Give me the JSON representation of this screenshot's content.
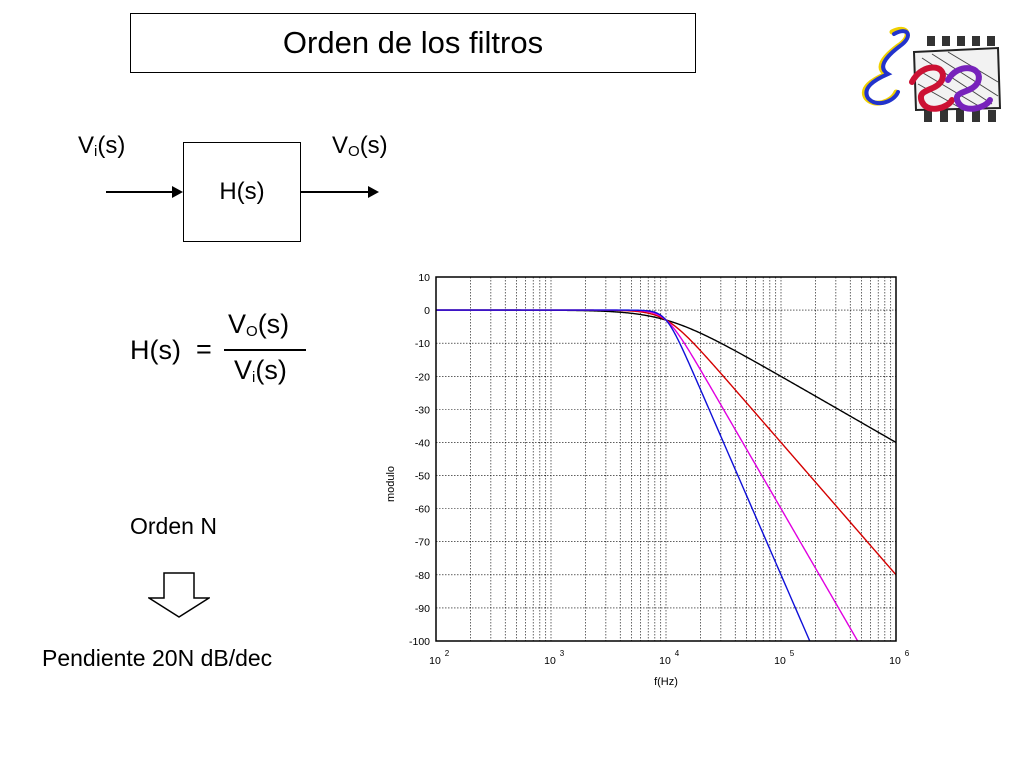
{
  "slide": {
    "title": "Orden de los filtros"
  },
  "block_diagram": {
    "input_main": "V",
    "input_sub": "i",
    "input_arg": "(s)",
    "output_main": "V",
    "output_sub": "O",
    "output_arg": "(s)",
    "block_label": "H(s)"
  },
  "formula": {
    "lhs": "H(s)",
    "equals": "=",
    "num_main": "V",
    "num_sub": "O",
    "num_arg": "(s)",
    "den_main": "V",
    "den_sub": "i",
    "den_arg": "(s)"
  },
  "order_label": "Orden N",
  "slope_label": "Pendiente 20N dB/dec",
  "chart_data": {
    "type": "line",
    "xlabel": "f(Hz)",
    "ylabel": "modulo",
    "xscale": "log",
    "xlim": [
      100,
      1000000
    ],
    "ylim": [
      -100,
      10
    ],
    "xticks": [
      100,
      1000,
      10000,
      100000,
      1000000
    ],
    "xtick_labels": [
      {
        "base": "10",
        "exp": "2"
      },
      {
        "base": "10",
        "exp": "3"
      },
      {
        "base": "10",
        "exp": "4"
      },
      {
        "base": "10",
        "exp": "5"
      },
      {
        "base": "10",
        "exp": "6"
      }
    ],
    "yticks": [
      10,
      0,
      -10,
      -20,
      -30,
      -40,
      -50,
      -60,
      -70,
      -80,
      -90,
      -100
    ],
    "grid": true,
    "cutoff_hz": 10000,
    "series": [
      {
        "order": 1,
        "color": "#000000"
      },
      {
        "order": 2,
        "color": "#d40000"
      },
      {
        "order": 3,
        "color": "#e000e0"
      },
      {
        "order": 4,
        "color": "#1010d8"
      }
    ]
  }
}
